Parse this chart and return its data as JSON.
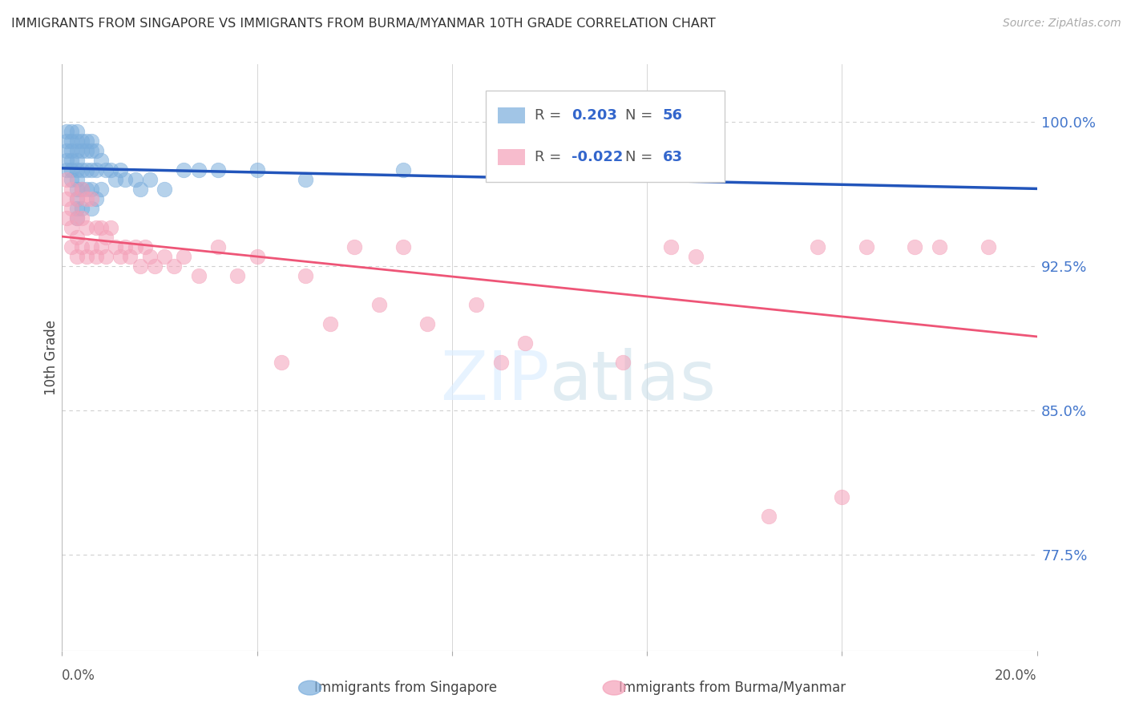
{
  "title": "IMMIGRANTS FROM SINGAPORE VS IMMIGRANTS FROM BURMA/MYANMAR 10TH GRADE CORRELATION CHART",
  "source": "Source: ZipAtlas.com",
  "ylabel": "10th Grade",
  "xlim": [
    0.0,
    0.2
  ],
  "ylim": [
    0.725,
    1.03
  ],
  "yticks": [
    0.775,
    0.85,
    0.925,
    1.0
  ],
  "ytick_labels": [
    "77.5%",
    "85.0%",
    "92.5%",
    "100.0%"
  ],
  "grid_color": "#d0d0d0",
  "bg_color": "#ffffff",
  "legend_R_singapore": "0.203",
  "legend_N_singapore": "56",
  "legend_R_burma": "-0.022",
  "legend_N_burma": "63",
  "singapore_color": "#7aaddc",
  "burma_color": "#f4a0b8",
  "trendline_singapore_color": "#2255bb",
  "trendline_burma_color": "#ee5577",
  "singapore_x": [
    0.001,
    0.001,
    0.001,
    0.001,
    0.001,
    0.002,
    0.002,
    0.002,
    0.002,
    0.002,
    0.002,
    0.003,
    0.003,
    0.003,
    0.003,
    0.003,
    0.003,
    0.003,
    0.003,
    0.003,
    0.003,
    0.004,
    0.004,
    0.004,
    0.004,
    0.004,
    0.005,
    0.005,
    0.005,
    0.005,
    0.006,
    0.006,
    0.006,
    0.006,
    0.006,
    0.007,
    0.007,
    0.007,
    0.008,
    0.008,
    0.009,
    0.01,
    0.011,
    0.012,
    0.013,
    0.015,
    0.016,
    0.018,
    0.021,
    0.025,
    0.028,
    0.032,
    0.04,
    0.05,
    0.07,
    0.12
  ],
  "singapore_y": [
    0.995,
    0.99,
    0.985,
    0.98,
    0.975,
    0.995,
    0.99,
    0.985,
    0.98,
    0.975,
    0.97,
    0.995,
    0.99,
    0.985,
    0.98,
    0.975,
    0.97,
    0.965,
    0.96,
    0.955,
    0.95,
    0.99,
    0.985,
    0.975,
    0.965,
    0.955,
    0.99,
    0.985,
    0.975,
    0.965,
    0.99,
    0.985,
    0.975,
    0.965,
    0.955,
    0.985,
    0.975,
    0.96,
    0.98,
    0.965,
    0.975,
    0.975,
    0.97,
    0.975,
    0.97,
    0.97,
    0.965,
    0.97,
    0.965,
    0.975,
    0.975,
    0.975,
    0.975,
    0.97,
    0.975,
    0.975
  ],
  "burma_x": [
    0.001,
    0.001,
    0.001,
    0.002,
    0.002,
    0.002,
    0.002,
    0.003,
    0.003,
    0.003,
    0.003,
    0.004,
    0.004,
    0.004,
    0.005,
    0.005,
    0.005,
    0.006,
    0.006,
    0.007,
    0.007,
    0.008,
    0.008,
    0.009,
    0.009,
    0.01,
    0.011,
    0.012,
    0.013,
    0.014,
    0.015,
    0.016,
    0.017,
    0.018,
    0.019,
    0.021,
    0.023,
    0.025,
    0.028,
    0.032,
    0.036,
    0.04,
    0.045,
    0.05,
    0.055,
    0.06,
    0.065,
    0.07,
    0.075,
    0.085,
    0.095,
    0.105,
    0.115,
    0.13,
    0.145,
    0.16,
    0.175,
    0.19,
    0.125,
    0.155,
    0.165,
    0.18,
    0.09
  ],
  "burma_y": [
    0.97,
    0.96,
    0.95,
    0.965,
    0.955,
    0.945,
    0.935,
    0.96,
    0.95,
    0.94,
    0.93,
    0.965,
    0.95,
    0.935,
    0.96,
    0.945,
    0.93,
    0.96,
    0.935,
    0.945,
    0.93,
    0.945,
    0.935,
    0.94,
    0.93,
    0.945,
    0.935,
    0.93,
    0.935,
    0.93,
    0.935,
    0.925,
    0.935,
    0.93,
    0.925,
    0.93,
    0.925,
    0.93,
    0.92,
    0.935,
    0.92,
    0.93,
    0.875,
    0.92,
    0.895,
    0.935,
    0.905,
    0.935,
    0.895,
    0.905,
    0.885,
    1.0,
    0.875,
    0.93,
    0.795,
    0.805,
    0.935,
    0.935,
    0.935,
    0.935,
    0.935,
    0.935,
    0.875
  ]
}
